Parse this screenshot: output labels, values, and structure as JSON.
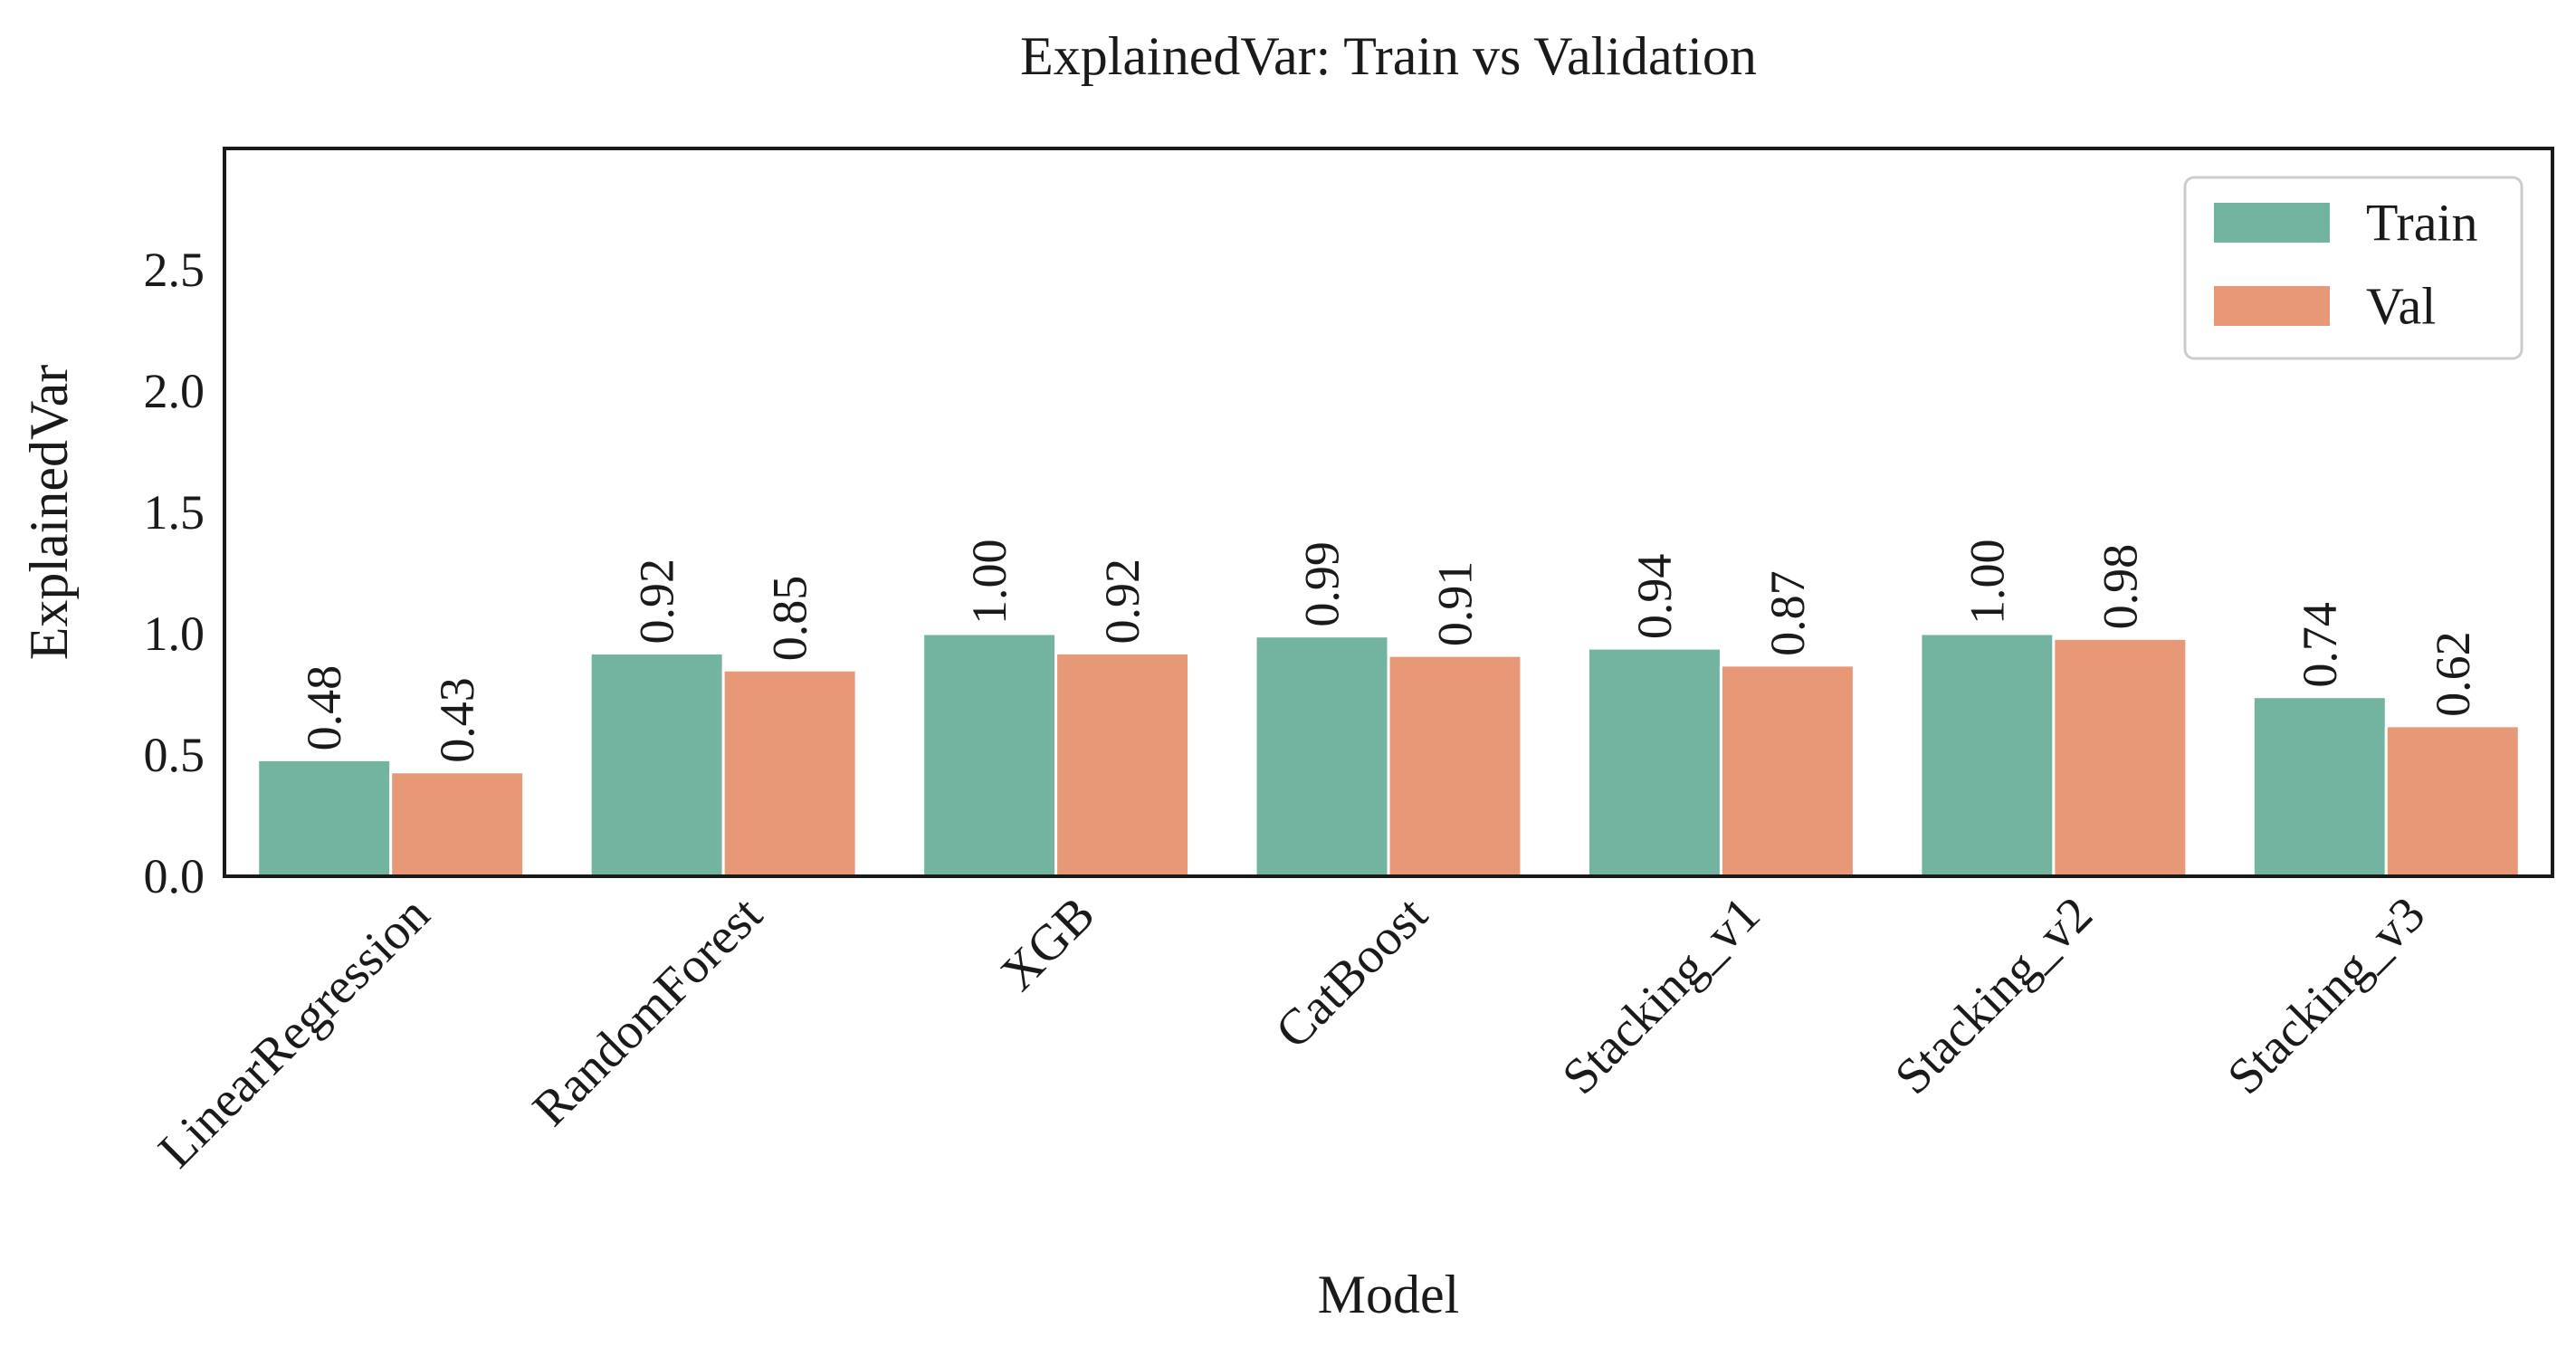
{
  "chart_data": {
    "type": "bar",
    "title": "ExplainedVar: Train vs Validation",
    "xlabel": "Model",
    "ylabel": "ExplainedVar",
    "ylim": [
      0,
      3.0
    ],
    "yticks": [
      0.0,
      0.5,
      1.0,
      1.5,
      2.0,
      2.5
    ],
    "ytick_labels": [
      "0.0",
      "0.5",
      "1.0",
      "1.5",
      "2.0",
      "2.5"
    ],
    "grid": false,
    "legend_position": "top-right",
    "categories": [
      "LinearRegression",
      "RandomForest",
      "XGB",
      "CatBoost",
      "Stacking_v1",
      "Stacking_v2",
      "Stacking_v3"
    ],
    "series": [
      {
        "name": "Train",
        "color": "#72b4a0",
        "values": [
          0.48,
          0.92,
          1.0,
          0.99,
          0.94,
          1.0,
          0.74
        ],
        "labels": [
          "0.48",
          "0.92",
          "1.00",
          "0.99",
          "0.94",
          "1.00",
          "0.74"
        ]
      },
      {
        "name": "Val",
        "color": "#e79877",
        "values": [
          0.43,
          0.85,
          0.92,
          0.91,
          0.87,
          0.98,
          0.62
        ],
        "labels": [
          "0.43",
          "0.85",
          "0.92",
          "0.91",
          "0.87",
          "0.98",
          "0.62"
        ]
      }
    ]
  }
}
